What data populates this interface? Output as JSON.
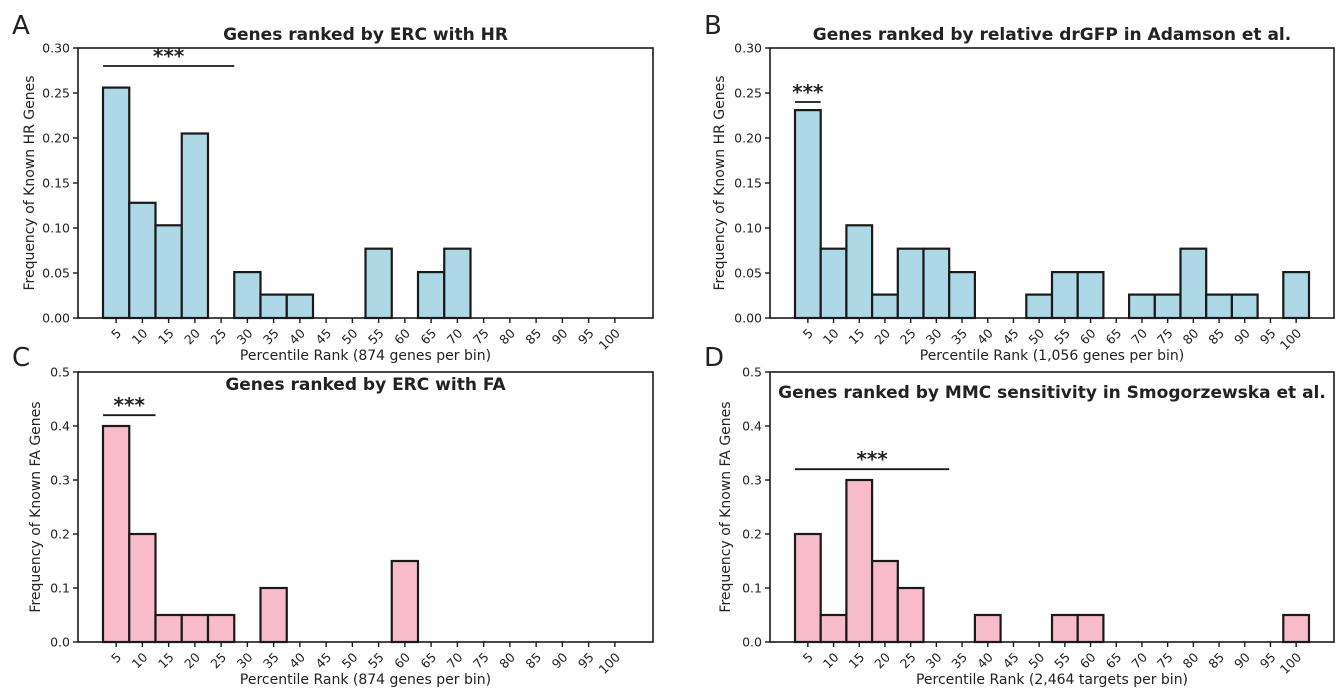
{
  "chart_data": [
    {
      "panel": "A",
      "type": "bar",
      "title": "Genes ranked by ERC with HR",
      "xlabel": "Percentile Rank (874 genes per bin)",
      "ylabel": "Frequency of Known HR Genes",
      "ylim": [
        0,
        0.3
      ],
      "yticks": [
        "0.00",
        "0.05",
        "0.10",
        "0.15",
        "0.20",
        "0.25",
        "0.30"
      ],
      "categories": [
        "5",
        "10",
        "15",
        "20",
        "25",
        "30",
        "35",
        "40",
        "45",
        "50",
        "55",
        "60",
        "65",
        "70",
        "75",
        "80",
        "85",
        "90",
        "95",
        "100"
      ],
      "values": [
        0.256,
        0.128,
        0.103,
        0.205,
        0.0,
        0.051,
        0.026,
        0.026,
        0.0,
        0.0,
        0.077,
        0.0,
        0.051,
        0.077,
        0.0,
        0.0,
        0.0,
        0.0,
        0.0,
        0.0
      ],
      "color": "#add8e6",
      "significance": {
        "label": "***",
        "from_bin": 1,
        "to_bin": 5,
        "y": 0.28
      }
    },
    {
      "panel": "B",
      "type": "bar",
      "title": "Genes ranked by relative drGFP in Adamson et al.",
      "xlabel": "Percentile Rank (1,056 genes per bin)",
      "ylabel": "Frequency of Known HR Genes",
      "ylim": [
        0,
        0.3
      ],
      "yticks": [
        "0.00",
        "0.05",
        "0.10",
        "0.15",
        "0.20",
        "0.25",
        "0.30"
      ],
      "categories": [
        "5",
        "10",
        "15",
        "20",
        "25",
        "30",
        "35",
        "40",
        "45",
        "50",
        "55",
        "60",
        "65",
        "70",
        "75",
        "80",
        "85",
        "90",
        "95",
        "100"
      ],
      "values": [
        0.231,
        0.077,
        0.103,
        0.026,
        0.077,
        0.077,
        0.051,
        0.0,
        0.0,
        0.026,
        0.051,
        0.051,
        0.0,
        0.026,
        0.026,
        0.077,
        0.026,
        0.026,
        0.0,
        0.051
      ],
      "color": "#add8e6",
      "significance": {
        "label": "***",
        "from_bin": 1,
        "to_bin": 1,
        "y": 0.24
      }
    },
    {
      "panel": "C",
      "type": "bar",
      "title": "Genes ranked by ERC with FA",
      "xlabel": "Percentile Rank (874 genes per bin)",
      "ylabel": "Frequency of Known FA Genes",
      "ylim": [
        0,
        0.5
      ],
      "yticks": [
        "0.0",
        "0.1",
        "0.2",
        "0.3",
        "0.4",
        "0.5"
      ],
      "categories": [
        "5",
        "10",
        "15",
        "20",
        "25",
        "30",
        "35",
        "40",
        "45",
        "50",
        "55",
        "60",
        "65",
        "70",
        "75",
        "80",
        "85",
        "90",
        "95",
        "100"
      ],
      "values": [
        0.4,
        0.2,
        0.05,
        0.05,
        0.05,
        0.0,
        0.1,
        0.0,
        0.0,
        0.0,
        0.0,
        0.15,
        0.0,
        0.0,
        0.0,
        0.0,
        0.0,
        0.0,
        0.0,
        0.0
      ],
      "color": "#f8bbc9",
      "significance": {
        "label": "***",
        "from_bin": 1,
        "to_bin": 2,
        "y": 0.42
      }
    },
    {
      "panel": "D",
      "type": "bar",
      "title": "Genes ranked by MMC sensitivity in Smogorzewska et al.",
      "xlabel": "Percentile Rank (2,464 targets per bin)",
      "ylabel": "Frequency of Known FA Genes",
      "ylim": [
        0,
        0.5
      ],
      "yticks": [
        "0.0",
        "0.1",
        "0.2",
        "0.3",
        "0.4",
        "0.5"
      ],
      "categories": [
        "5",
        "10",
        "15",
        "20",
        "25",
        "30",
        "35",
        "40",
        "45",
        "50",
        "55",
        "60",
        "65",
        "70",
        "75",
        "80",
        "85",
        "90",
        "95",
        "100"
      ],
      "values": [
        0.2,
        0.05,
        0.3,
        0.15,
        0.1,
        0.0,
        0.0,
        0.05,
        0.0,
        0.0,
        0.05,
        0.05,
        0.0,
        0.0,
        0.0,
        0.0,
        0.0,
        0.0,
        0.0,
        0.05
      ],
      "color": "#f8bbc9",
      "significance": {
        "label": "***",
        "from_bin": 1,
        "to_bin": 6,
        "y": 0.32
      }
    }
  ]
}
